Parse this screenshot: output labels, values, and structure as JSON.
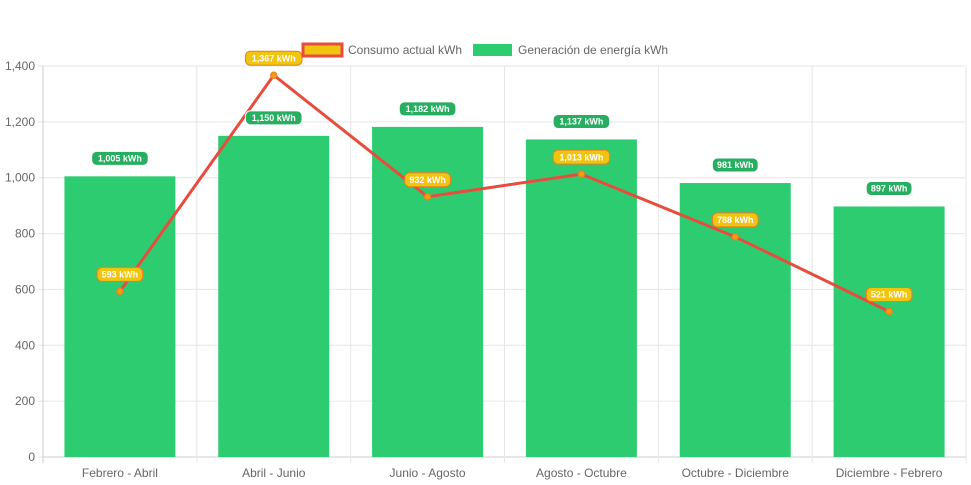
{
  "chart_data": {
    "type": "bar",
    "categories": [
      "Febrero - Abril",
      "Abril - Junio",
      "Junio - Agosto",
      "Agosto - Octubre",
      "Octubre - Diciembre",
      "Diciembre - Febrero"
    ],
    "series": [
      {
        "name": "Consumo actual kWh",
        "type": "line",
        "values": [
          593,
          1367,
          932,
          1013,
          788,
          521
        ],
        "labels": [
          "593 kWh",
          "1,367 kWh",
          "932 kWh",
          "1,013 kWh",
          "788 kWh",
          "521 kWh"
        ],
        "color": "#e74c3c",
        "label_fill": "#f1c40f"
      },
      {
        "name": "Generación de energía kWh",
        "type": "bar",
        "values": [
          1005,
          1150,
          1182,
          1137,
          981,
          897
        ],
        "labels": [
          "1,005 kWh",
          "1,150 kWh",
          "1,182 kWh",
          "1,137 kWh",
          "981 kWh",
          "897 kWh"
        ],
        "color": "#2ecc71"
      }
    ],
    "ylim": [
      0,
      1400
    ],
    "yticks": [
      0,
      200,
      400,
      600,
      800,
      1000,
      1200,
      1400
    ],
    "ytick_labels": [
      "0",
      "200",
      "400",
      "600",
      "800",
      "1,000",
      "1,200",
      "1,400"
    ],
    "grid": true,
    "legend": "top-center"
  }
}
